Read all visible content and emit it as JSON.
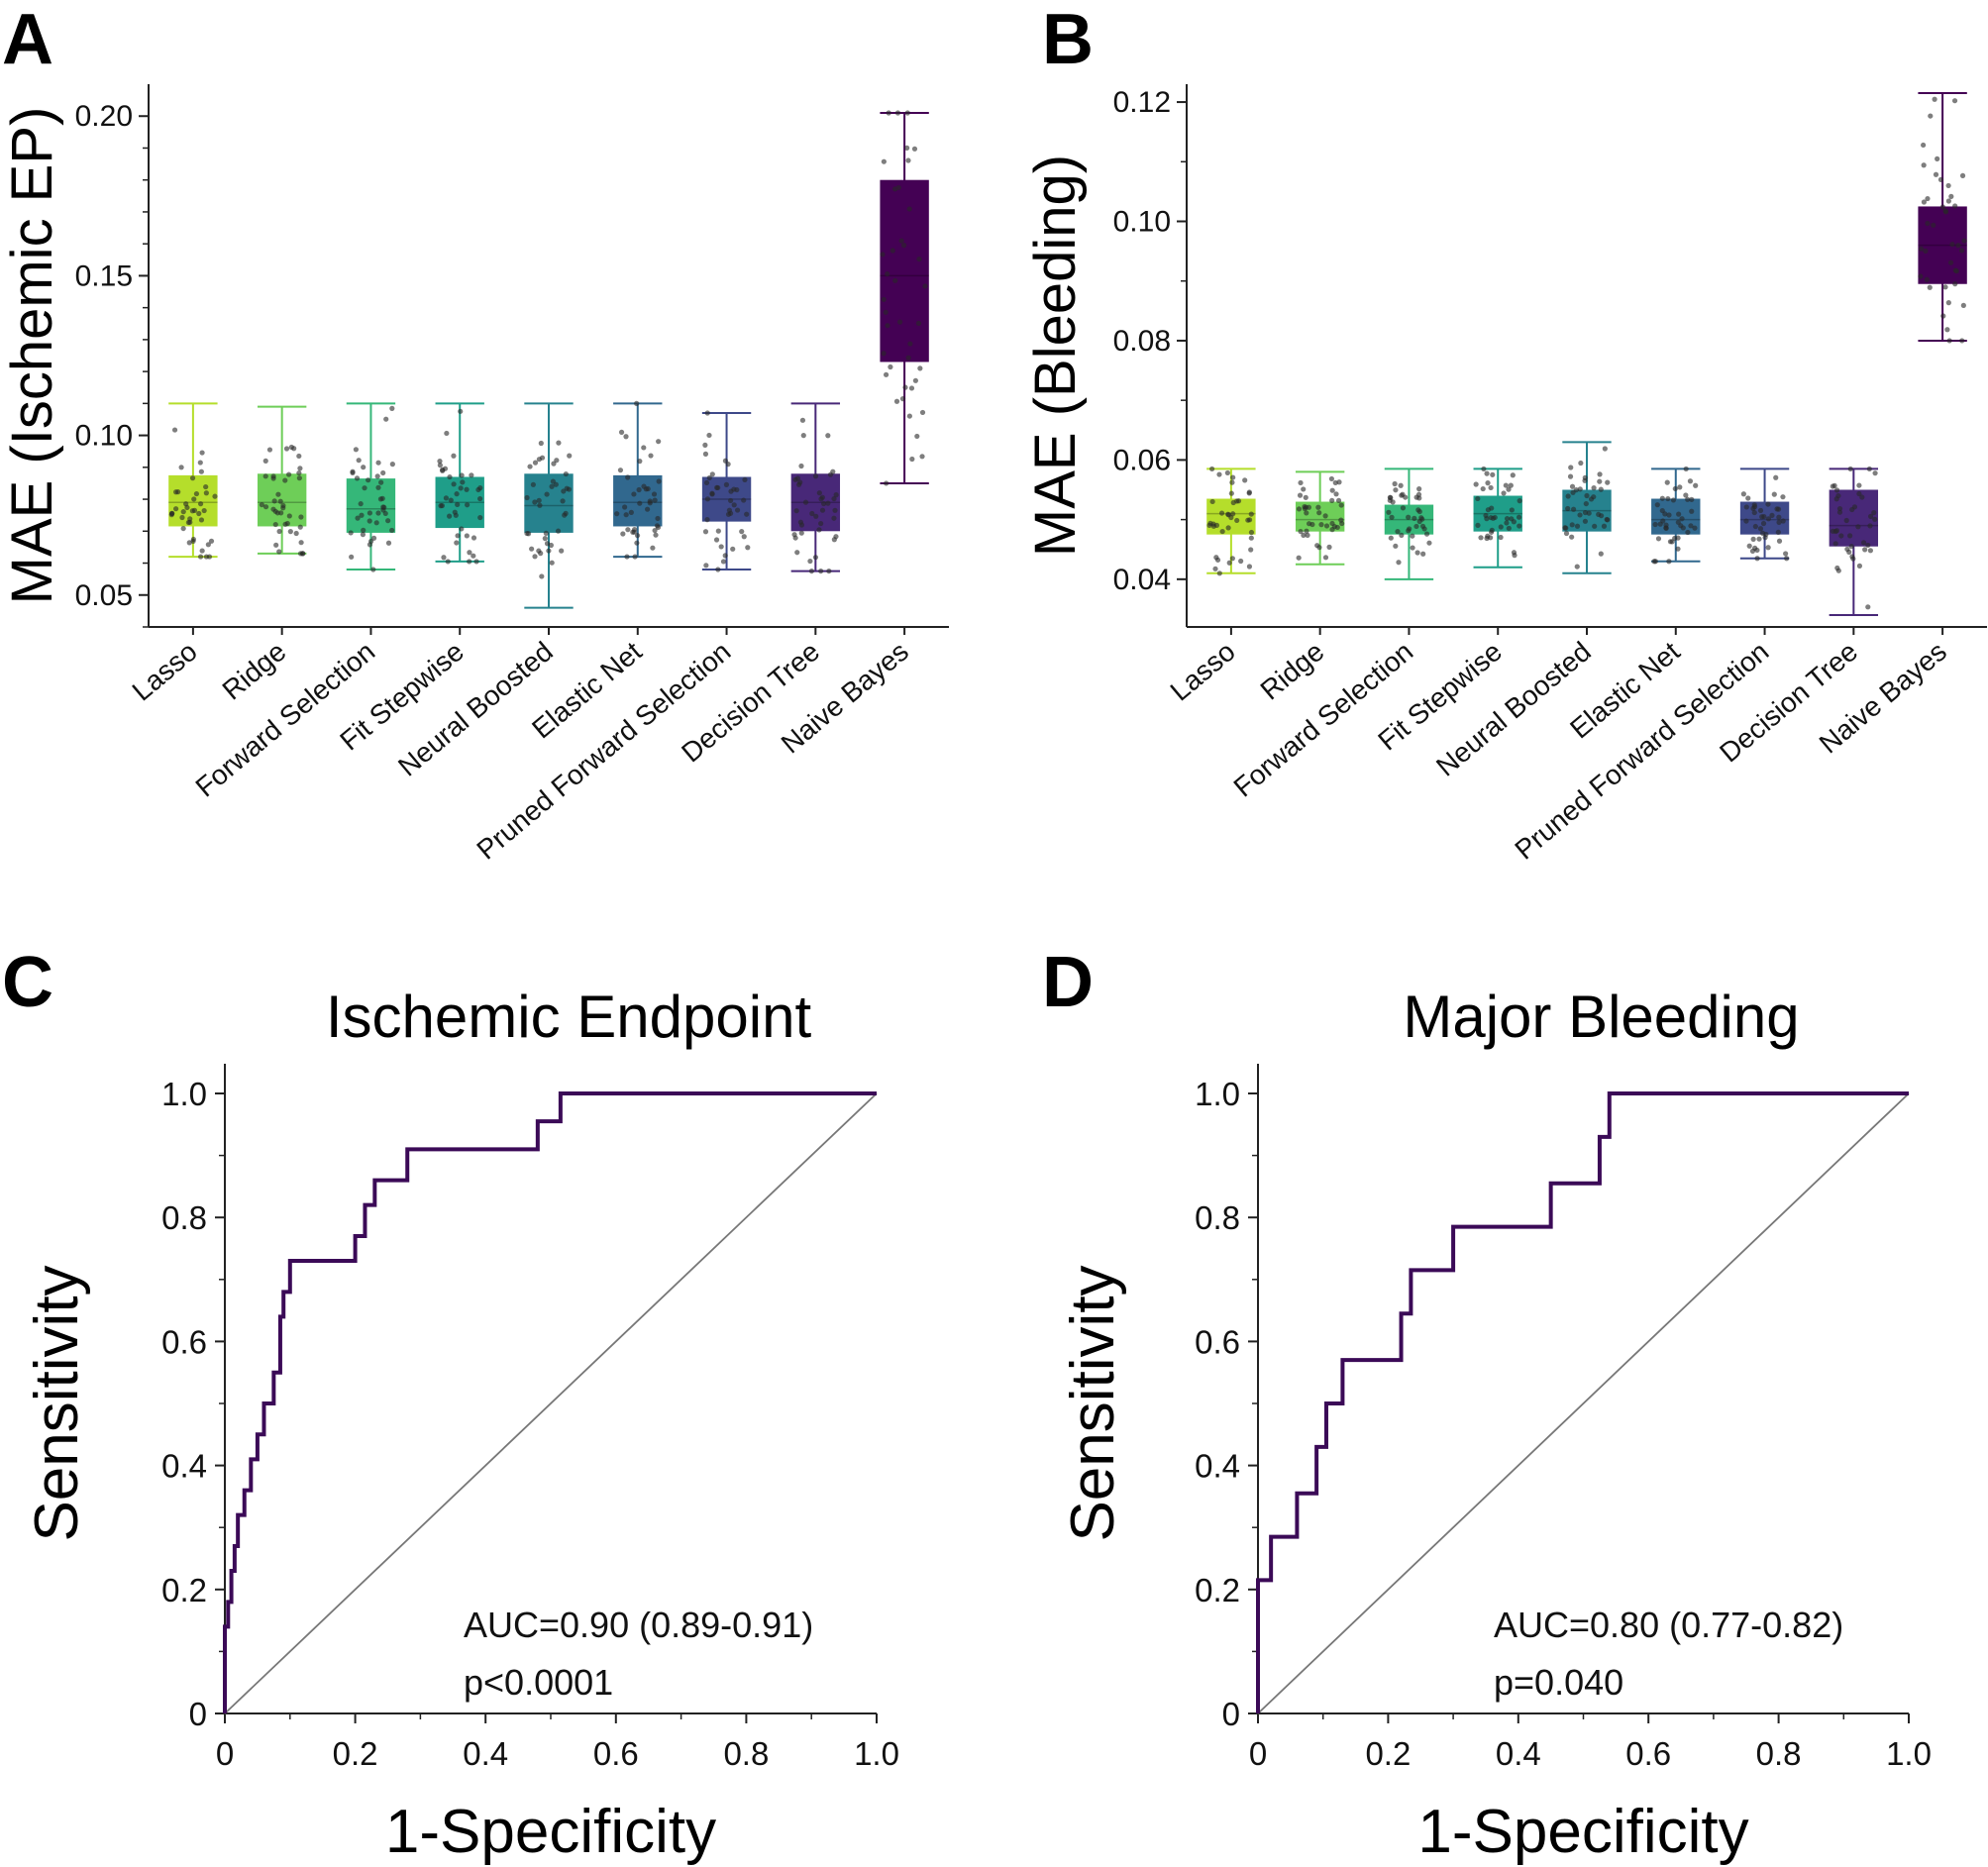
{
  "chart_data": [
    {
      "panel": "A",
      "type": "box",
      "ylabel": "MAE (Ischemic EP)",
      "ylim": [
        0.04,
        0.21
      ],
      "yticks": [
        "0.05",
        "0.10",
        "0.15",
        "0.20"
      ],
      "categories": [
        "Lasso",
        "Ridge",
        "Forward Selection",
        "Fit Stepwise",
        "Neural Boosted",
        "Elastic Net",
        "Pruned Forward Selection",
        "Decision Tree",
        "Naive Bayes"
      ],
      "colors": [
        "#b5de2b",
        "#6ece58",
        "#35b779",
        "#1f9e89",
        "#26828e",
        "#31688e",
        "#3e4989",
        "#482878",
        "#440154"
      ],
      "boxes": [
        {
          "min": 0.062,
          "q1": 0.0715,
          "median": 0.079,
          "q3": 0.0875,
          "max": 0.11
        },
        {
          "min": 0.063,
          "q1": 0.0715,
          "median": 0.079,
          "q3": 0.088,
          "max": 0.109
        },
        {
          "min": 0.058,
          "q1": 0.0695,
          "median": 0.077,
          "q3": 0.0865,
          "max": 0.11
        },
        {
          "min": 0.0605,
          "q1": 0.071,
          "median": 0.079,
          "q3": 0.087,
          "max": 0.11
        },
        {
          "min": 0.046,
          "q1": 0.0695,
          "median": 0.078,
          "q3": 0.088,
          "max": 0.11
        },
        {
          "min": 0.062,
          "q1": 0.0715,
          "median": 0.079,
          "q3": 0.0875,
          "max": 0.11
        },
        {
          "min": 0.058,
          "q1": 0.073,
          "median": 0.08,
          "q3": 0.087,
          "max": 0.107
        },
        {
          "min": 0.0575,
          "q1": 0.07,
          "median": 0.079,
          "q3": 0.088,
          "max": 0.11
        },
        {
          "min": 0.085,
          "q1": 0.123,
          "median": 0.15,
          "q3": 0.18,
          "max": 0.201
        }
      ]
    },
    {
      "panel": "B",
      "type": "box",
      "ylabel": "MAE (Bleeding)",
      "ylim": [
        0.032,
        0.123
      ],
      "yticks": [
        "0.04",
        "0.06",
        "0.08",
        "0.10",
        "0.12"
      ],
      "categories": [
        "Lasso",
        "Ridge",
        "Forward Selection",
        "Fit Stepwise",
        "Neural Boosted",
        "Elastic Net",
        "Pruned Forward Selection",
        "Decision Tree",
        "Naive Bayes"
      ],
      "colors": [
        "#b5de2b",
        "#6ece58",
        "#35b779",
        "#1f9e89",
        "#26828e",
        "#31688e",
        "#3e4989",
        "#482878",
        "#440154"
      ],
      "boxes": [
        {
          "min": 0.041,
          "q1": 0.0475,
          "median": 0.051,
          "q3": 0.0535,
          "max": 0.0585
        },
        {
          "min": 0.0425,
          "q1": 0.048,
          "median": 0.05,
          "q3": 0.053,
          "max": 0.058
        },
        {
          "min": 0.04,
          "q1": 0.0475,
          "median": 0.05,
          "q3": 0.0525,
          "max": 0.0585
        },
        {
          "min": 0.042,
          "q1": 0.048,
          "median": 0.051,
          "q3": 0.054,
          "max": 0.0585
        },
        {
          "min": 0.041,
          "q1": 0.048,
          "median": 0.0515,
          "q3": 0.055,
          "max": 0.063
        },
        {
          "min": 0.043,
          "q1": 0.0475,
          "median": 0.05,
          "q3": 0.0535,
          "max": 0.0585
        },
        {
          "min": 0.0435,
          "q1": 0.0475,
          "median": 0.05,
          "q3": 0.053,
          "max": 0.0585
        },
        {
          "min": 0.034,
          "q1": 0.0455,
          "median": 0.049,
          "q3": 0.055,
          "max": 0.0585
        },
        {
          "min": 0.08,
          "q1": 0.0895,
          "median": 0.096,
          "q3": 0.1025,
          "max": 0.1215
        }
      ]
    },
    {
      "panel": "C",
      "type": "line",
      "title": "Ischemic Endpoint",
      "xlabel": "1-Specificity",
      "ylabel": "Sensitivity",
      "xlim": [
        0,
        1.0
      ],
      "ylim": [
        0,
        1.0
      ],
      "xticks": [
        "0",
        "0.2",
        "0.4",
        "0.6",
        "0.8",
        "1.0"
      ],
      "yticks": [
        "0",
        "0.2",
        "0.4",
        "0.6",
        "0.8",
        "1.0"
      ],
      "annotation": [
        "AUC=0.90 (0.89-0.91)",
        "p<0.0001"
      ],
      "x": [
        0,
        0,
        0.005,
        0.005,
        0.01,
        0.01,
        0.015,
        0.015,
        0.02,
        0.02,
        0.03,
        0.03,
        0.04,
        0.04,
        0.05,
        0.05,
        0.06,
        0.06,
        0.07,
        0.07,
        0.075,
        0.075,
        0.085,
        0.085,
        0.09,
        0.09,
        0.095,
        0.095,
        0.1,
        0.1,
        0.11,
        0.11,
        0.2,
        0.2,
        0.215,
        0.215,
        0.23,
        0.23,
        0.28,
        0.28,
        0.48,
        0.48,
        0.515,
        0.515,
        1.0
      ],
      "y": [
        0,
        0.14,
        0.14,
        0.18,
        0.18,
        0.23,
        0.23,
        0.27,
        0.27,
        0.32,
        0.32,
        0.36,
        0.36,
        0.41,
        0.41,
        0.45,
        0.45,
        0.5,
        0.5,
        0.5,
        0.5,
        0.55,
        0.55,
        0.64,
        0.64,
        0.68,
        0.68,
        0.68,
        0.68,
        0.73,
        0.73,
        0.73,
        0.73,
        0.77,
        0.77,
        0.82,
        0.82,
        0.86,
        0.86,
        0.91,
        0.91,
        0.955,
        0.955,
        1.0,
        1.0
      ],
      "diagonal": true
    },
    {
      "panel": "D",
      "type": "line",
      "title": "Major Bleeding",
      "xlabel": "1-Specificity",
      "ylabel": "Sensitivity",
      "xlim": [
        0,
        1.0
      ],
      "ylim": [
        0,
        1.0
      ],
      "xticks": [
        "0",
        "0.2",
        "0.4",
        "0.6",
        "0.8",
        "1.0"
      ],
      "yticks": [
        "0",
        "0.2",
        "0.4",
        "0.6",
        "0.8",
        "1.0"
      ],
      "annotation": [
        "AUC=0.80 (0.77-0.82)",
        "p=0.040"
      ],
      "x": [
        0,
        0,
        0.02,
        0.02,
        0.06,
        0.06,
        0.09,
        0.09,
        0.105,
        0.105,
        0.13,
        0.13,
        0.22,
        0.22,
        0.235,
        0.235,
        0.3,
        0.3,
        0.45,
        0.45,
        0.525,
        0.525,
        0.54,
        0.54,
        1.0
      ],
      "y": [
        0,
        0.215,
        0.215,
        0.285,
        0.285,
        0.355,
        0.355,
        0.43,
        0.43,
        0.5,
        0.5,
        0.57,
        0.57,
        0.645,
        0.645,
        0.715,
        0.715,
        0.785,
        0.785,
        0.855,
        0.855,
        0.93,
        0.93,
        1.0,
        1.0
      ],
      "diagonal": true
    }
  ],
  "panels": {
    "a": {
      "letter": "A"
    },
    "b": {
      "letter": "B"
    },
    "c": {
      "letter": "C"
    },
    "d": {
      "letter": "D"
    }
  }
}
